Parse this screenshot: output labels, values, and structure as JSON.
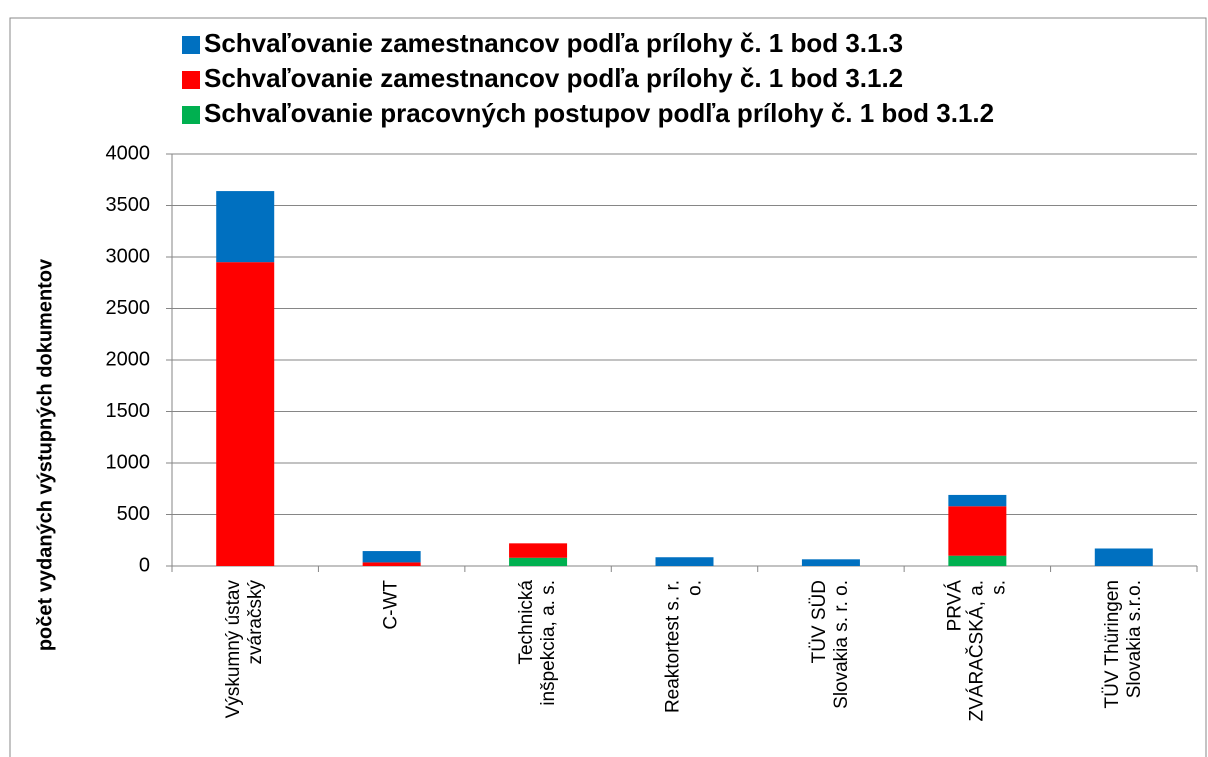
{
  "chart_data": {
    "type": "stacked_bar",
    "categories": [
      "Výskumný ústav\nzváračský",
      "C-WT",
      "Technická\ninšpekcia, a. s.",
      "Reaktortest s. r.\no.",
      "TÜV SÜD\nSlovakia s. r. o.",
      "PRVÁ\nZVÁRAČSKÁ, a.\ns.",
      "TÜV Thüringen\nSlovakia s.r.o."
    ],
    "series": [
      {
        "name": "Schvaľovanie pracovných postupov podľa prílohy č. 1 bod 3.1.2",
        "color": "#00b050",
        "values": [
          0,
          0,
          80,
          0,
          0,
          100,
          0
        ]
      },
      {
        "name": "Schvaľovanie zamestnancov podľa prílohy č. 1 bod 3.1.2",
        "color": "#ff0000",
        "values": [
          2950,
          35,
          140,
          0,
          0,
          480,
          0
        ]
      },
      {
        "name": "Schvaľovanie zamestnancov podľa prílohy č. 1 bod 3.1.3",
        "color": "#0070c0",
        "values": [
          690,
          110,
          0,
          85,
          65,
          110,
          170
        ]
      }
    ],
    "ylabel": "počet vydaných výstupných dokumentov",
    "ylim": [
      0,
      4000
    ],
    "yticks": [
      0,
      500,
      1000,
      1500,
      2000,
      2500,
      3000,
      3500,
      4000
    ],
    "grid": true
  }
}
